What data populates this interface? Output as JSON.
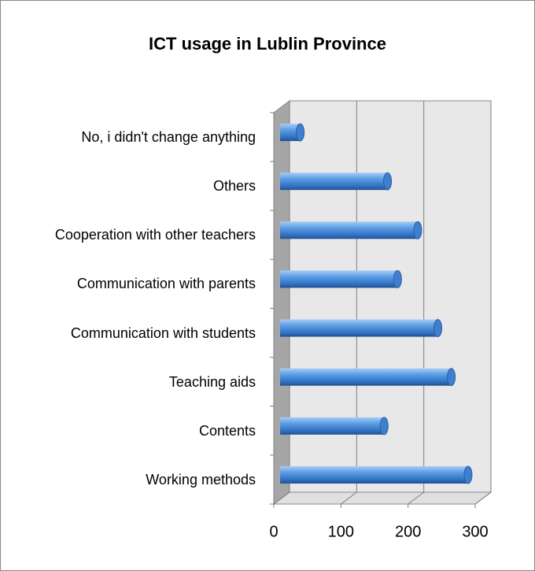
{
  "chart_data": {
    "type": "bar3d_horizontal",
    "title": "ICT usage in Lublin Province",
    "categories": [
      "Working methods",
      "Contents",
      "Teaching aids",
      "Communication with students",
      "Communication with parents",
      "Cooperation with other teachers",
      "Others",
      "No, i didn't change anything"
    ],
    "values": [
      280,
      155,
      255,
      235,
      175,
      205,
      160,
      30
    ],
    "color": "#4a8fd8",
    "xlim": [
      0,
      300
    ],
    "xticks": [
      0,
      100,
      200,
      300
    ],
    "grid": true
  }
}
